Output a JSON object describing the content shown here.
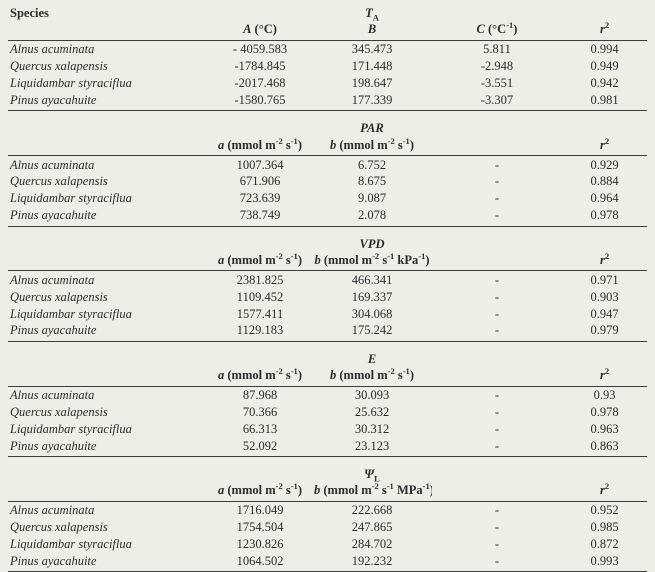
{
  "page": {
    "background": "#edeee8",
    "text_color": "#2c2c2c",
    "rule_color": "#3c3c3c"
  },
  "table": {
    "species_header": "Species",
    "sections": [
      {
        "id": "ta",
        "title": "_T_~A~",
        "columns": [
          "_A_ (°C)",
          "_B_",
          "_C_ (°C^-1^)",
          "_r_^2^"
        ],
        "rows": [
          {
            "species": "Alnus acuminata",
            "values": [
              "- 4059.583",
              "345.473",
              "5.811",
              "0.994"
            ]
          },
          {
            "species": "Quercus xalapensis",
            "values": [
              "-1784.845",
              "171.448",
              "-2.948",
              "0.949"
            ]
          },
          {
            "species": "Liquidambar styraciflua",
            "values": [
              "-2017.468",
              "198.647",
              "-3.551",
              "0.942"
            ]
          },
          {
            "species": "Pinus ayacahuite",
            "values": [
              "-1580.765",
              "177.339",
              "-3.307",
              "0.981"
            ]
          }
        ]
      },
      {
        "id": "par",
        "title": "_PAR_",
        "columns": [
          "_a_ (mmol m^-2^ s^-1^)",
          "_b_ (mmol m^-2^ s^-1^)",
          "",
          "_r_^2^"
        ],
        "rows": [
          {
            "species": "Alnus acuminata",
            "values": [
              "1007.364",
              "6.752",
              "-",
              "0.929"
            ]
          },
          {
            "species": "Quercus xalapensis",
            "values": [
              "671.906",
              "8.675",
              "-",
              "0.884"
            ]
          },
          {
            "species": "Liquidambar styraciflua",
            "values": [
              "723.639",
              "9.087",
              "-",
              "0.964"
            ]
          },
          {
            "species": "Pinus ayacahuite",
            "values": [
              "738.749",
              "2.078",
              "-",
              "0.978"
            ]
          }
        ]
      },
      {
        "id": "vpd",
        "title": "_VPD_",
        "columns": [
          "_a_ (mmol m^-2^ s^-1^)",
          "_b_ (mmol m^-2^ s^-1^ kPa^-1^)",
          "",
          "_r_^2^"
        ],
        "rows": [
          {
            "species": "Alnus acuminata",
            "values": [
              "2381.825",
              "466.341",
              "-",
              "0.971"
            ]
          },
          {
            "species": "Quercus xalapensis",
            "values": [
              "1109.452",
              "169.337",
              "-",
              "0.903"
            ]
          },
          {
            "species": "Liquidambar styraciflua",
            "values": [
              "1577.411",
              "304.068",
              "-",
              "0.947"
            ]
          },
          {
            "species": "Pinus ayacahuite",
            "values": [
              "1129.183",
              "175.242",
              "-",
              "0.979"
            ]
          }
        ]
      },
      {
        "id": "e",
        "title": "_E_",
        "columns": [
          "_a_ (mmol m^-2^ s^-1^)",
          "_b_ (mmol m^-2^ s^-1^)",
          "",
          "_r_^2^"
        ],
        "rows": [
          {
            "species": "Alnus acuminata",
            "values": [
              "87.968",
              "30.093",
              "-",
              "0.93"
            ]
          },
          {
            "species": "Quercus xalapensis",
            "values": [
              "70.366",
              "25.632",
              "-",
              "0.978"
            ]
          },
          {
            "species": "Liquidambar styraciflua",
            "values": [
              "66.313",
              "30.312",
              "-",
              "0.963"
            ]
          },
          {
            "species": "Pinus ayacahuite",
            "values": [
              "52.092",
              "23.123",
              "-",
              "0.863"
            ]
          }
        ]
      },
      {
        "id": "psi-l",
        "title": "_Ψ_~L~",
        "columns": [
          "_a_ (mmol m^-2^ s^-1^)",
          "_b_ (mmol m^-2^ s^-1^ MPa^-1^)",
          "",
          "_r_^2^"
        ],
        "rows": [
          {
            "species": "Alnus acuminata",
            "values": [
              "1716.049",
              "222.668",
              "-",
              "0.952"
            ]
          },
          {
            "species": "Quercus xalapensis",
            "values": [
              "1754.504",
              "247.865",
              "-",
              "0.985"
            ]
          },
          {
            "species": "Liquidambar styraciflua",
            "values": [
              "1230.826",
              "284.702",
              "-",
              "0.872"
            ]
          },
          {
            "species": "Pinus ayacahuite",
            "values": [
              "1064.502",
              "192.232",
              "-",
              "0.993"
            ]
          }
        ]
      }
    ]
  }
}
